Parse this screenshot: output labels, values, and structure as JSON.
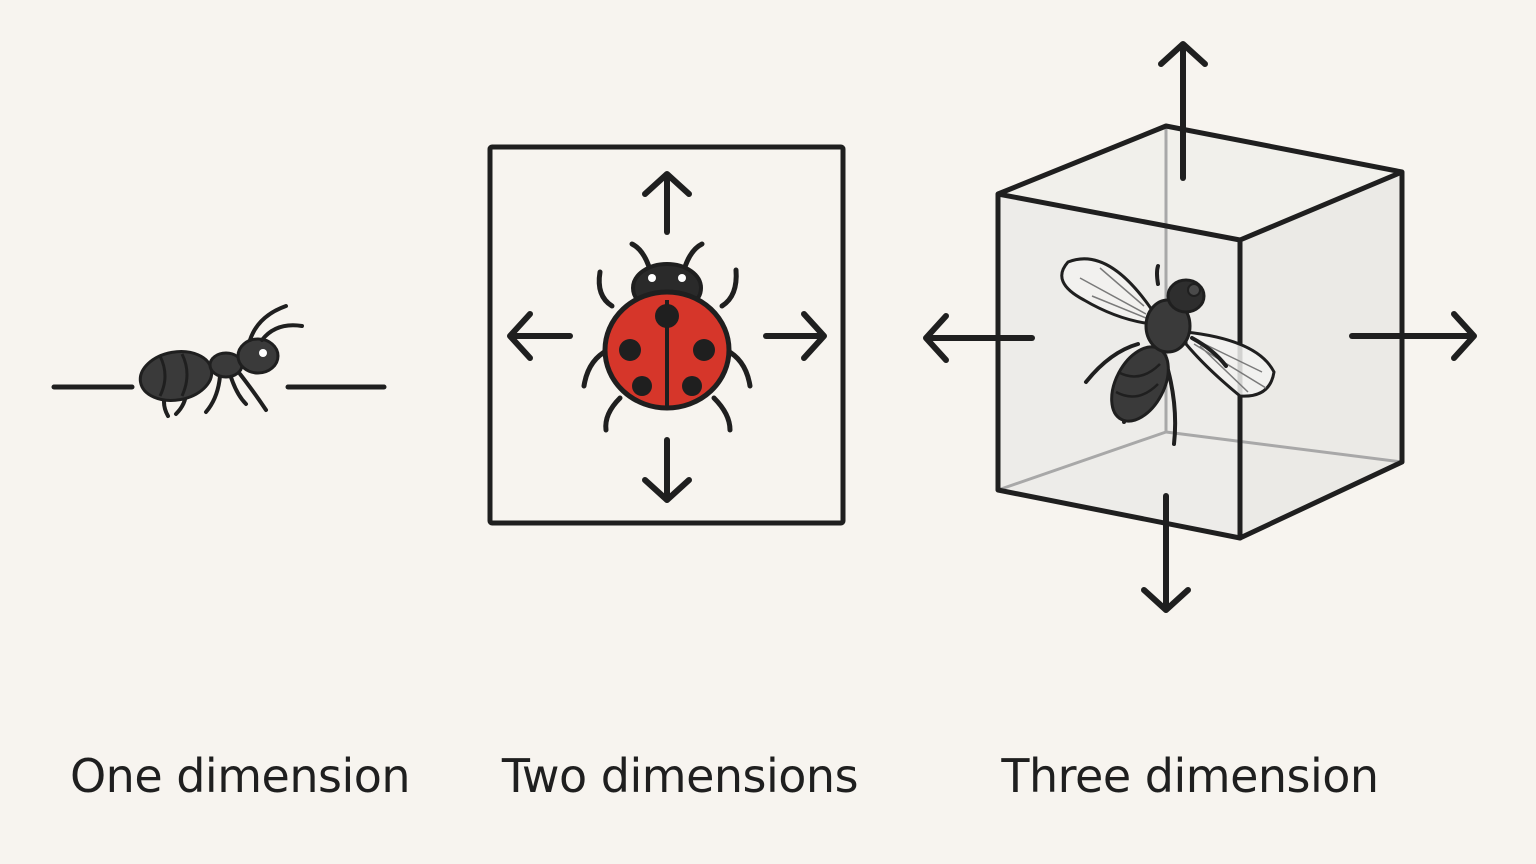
{
  "panels": [
    {
      "id": "one",
      "caption": "One dimension",
      "creature": "ant-icon",
      "movement_axes": 1
    },
    {
      "id": "two",
      "caption": "Two dimensions",
      "creature": "ladybug-icon",
      "movement_axes": 2
    },
    {
      "id": "three",
      "caption": "Three dimension",
      "creature": "fly-icon",
      "movement_axes": 3
    }
  ],
  "colors": {
    "background": "#f7f4ef",
    "ink": "#1f1f1f",
    "ladybug_red": "#d6362a",
    "insect_body": "#3a3a3a",
    "cube_fill": "#e6e6e4"
  }
}
